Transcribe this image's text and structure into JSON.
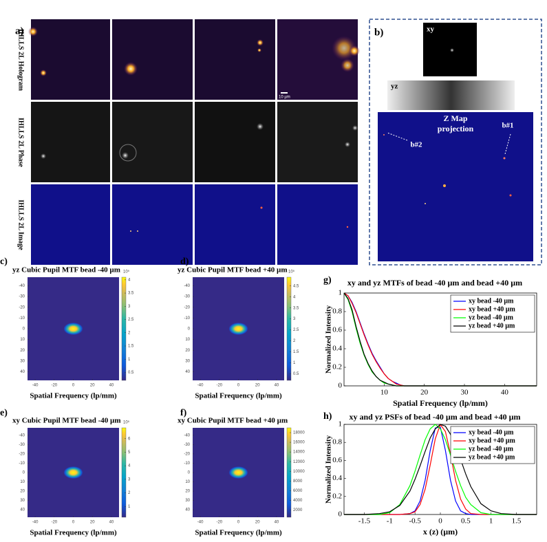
{
  "panel_a": {
    "label": "a)",
    "row_labels": [
      "IHLLS 2L Hologram",
      "IHLLS 2L Phase",
      "IHLLS 2L Image"
    ],
    "scale_bar": "10 µm"
  },
  "panel_b": {
    "label": "b)",
    "xy": "xy",
    "yz": "yz",
    "map_title": [
      "Z Map",
      "projection"
    ],
    "bead_labels": [
      "b#1",
      "b#2"
    ]
  },
  "chart_data": [
    {
      "type": "heatmap",
      "label": "c)",
      "title": "yz Cubic Pupil MTF bead -40 µm",
      "exponent": "10⁵",
      "xlabel": "Spatial Frequency (lp/mm)",
      "xlim": [
        -48,
        48
      ],
      "ylim": [
        48,
        -48
      ],
      "xticks": [
        -40,
        -20,
        0,
        20,
        40
      ],
      "yticks": [
        -40,
        -30,
        -20,
        -10,
        0,
        10,
        20,
        30,
        40
      ],
      "peak": {
        "x": 0,
        "y": 0,
        "value": 4.1
      },
      "clim": [
        0.2,
        4.1
      ],
      "cticks": [
        0.5,
        1,
        1.5,
        2,
        2.5,
        3,
        3.5,
        4
      ]
    },
    {
      "type": "heatmap",
      "label": "d)",
      "title": "yz Cubic Pupil MTF bead +40 µm",
      "exponent": "10⁵",
      "xlabel": "Spatial Frequency (lp/mm)",
      "xlim": [
        -48,
        48
      ],
      "ylim": [
        48,
        -48
      ],
      "xticks": [
        -40,
        -20,
        0,
        20,
        40
      ],
      "yticks": [
        -40,
        -30,
        -20,
        -10,
        0,
        10,
        20,
        30,
        40
      ],
      "peak": {
        "x": 0,
        "y": 0,
        "value": 4.9
      },
      "clim": [
        0.2,
        4.9
      ],
      "cticks": [
        0.5,
        1,
        1.5,
        2,
        2.5,
        3,
        3.5,
        4,
        4.5
      ]
    },
    {
      "type": "heatmap",
      "label": "e)",
      "title": "xy Cubic Pupil MTF bead -40 µm",
      "exponent": "10⁵",
      "xlabel": "Spatial Frequency (lp/mm)",
      "xlim": [
        -48,
        48
      ],
      "ylim": [
        48,
        -48
      ],
      "xticks": [
        -40,
        -20,
        0,
        20,
        40
      ],
      "yticks": [
        -40,
        -30,
        -20,
        -10,
        0,
        10,
        20,
        30,
        40
      ],
      "peak": {
        "x": 0,
        "y": 0,
        "value": 6.8
      },
      "clim": [
        0.2,
        6.8
      ],
      "cticks": [
        1,
        2,
        3,
        4,
        5,
        6
      ]
    },
    {
      "type": "heatmap",
      "label": "f)",
      "title": "xy Cubic Pupil MTF bead +40 µm",
      "xlabel": "Spatial Frequency (lp/mm)",
      "xlim": [
        -48,
        48
      ],
      "ylim": [
        48,
        -48
      ],
      "xticks": [
        -40,
        -20,
        0,
        20,
        40
      ],
      "yticks": [
        -40,
        -30,
        -20,
        -10,
        0,
        10,
        20,
        30,
        40
      ],
      "peak": {
        "x": 0,
        "y": 0,
        "value": 19000
      },
      "clim": [
        500,
        19000
      ],
      "cticks": [
        2000,
        4000,
        6000,
        8000,
        10000,
        12000,
        14000,
        16000,
        18000
      ]
    },
    {
      "type": "line",
      "label": "g)",
      "title": "xy and yz MTFs of bead -40 µm and bead +40 µm",
      "xlabel": "Spatial Frequency (lp/mm)",
      "ylabel": "Normalized Intensity",
      "xlim": [
        0,
        48
      ],
      "ylim": [
        0,
        1
      ],
      "xticks": [
        10,
        20,
        30,
        40
      ],
      "yticks": [
        0,
        0.2,
        0.4,
        0.6,
        0.8,
        1
      ],
      "legend": "top-right",
      "x": [
        0,
        1,
        2,
        3,
        4,
        5,
        6,
        7,
        8,
        9,
        10,
        11,
        12,
        13,
        14,
        15,
        16,
        20,
        30,
        40,
        48
      ],
      "series": [
        {
          "name": "xy bead -40 µm",
          "color": "#0000ff",
          "values": [
            1,
            0.97,
            0.9,
            0.8,
            0.68,
            0.56,
            0.45,
            0.35,
            0.27,
            0.2,
            0.13,
            0.08,
            0.05,
            0.03,
            0.01,
            0,
            0,
            0,
            0,
            0,
            0
          ]
        },
        {
          "name": "xy bead +40 µm",
          "color": "#ff0000",
          "values": [
            1,
            0.97,
            0.89,
            0.79,
            0.67,
            0.55,
            0.44,
            0.34,
            0.26,
            0.19,
            0.13,
            0.08,
            0.05,
            0.02,
            0.01,
            0,
            0,
            0,
            0,
            0,
            0
          ]
        },
        {
          "name": "yz bead -40 µm",
          "color": "#00ff00",
          "values": [
            1,
            0.93,
            0.8,
            0.62,
            0.46,
            0.33,
            0.23,
            0.15,
            0.1,
            0.06,
            0.03,
            0.02,
            0.01,
            0,
            0,
            0,
            0,
            0,
            0,
            0,
            0
          ]
        },
        {
          "name": "yz bead +40 µm",
          "color": "#000000",
          "values": [
            1,
            0.94,
            0.82,
            0.64,
            0.48,
            0.34,
            0.24,
            0.16,
            0.1,
            0.06,
            0.04,
            0.02,
            0.01,
            0,
            0,
            0,
            0,
            0,
            0,
            0,
            0
          ]
        }
      ]
    },
    {
      "type": "line",
      "label": "h)",
      "title": "xy and yz PSFs of bead -40 µm and bead +40 µm",
      "xlabel": "x (z) (µm)",
      "ylabel": "Normalized Intensity",
      "xlim": [
        -1.9,
        1.9
      ],
      "ylim": [
        0,
        1
      ],
      "xticks": [
        -1.5,
        -1,
        -0.5,
        0,
        0.5,
        1,
        1.5
      ],
      "yticks": [
        0,
        0.2,
        0.4,
        0.6,
        0.8,
        1
      ],
      "legend": "top-right",
      "x": [
        -1.9,
        -1.5,
        -1.2,
        -1,
        -0.8,
        -0.6,
        -0.5,
        -0.4,
        -0.3,
        -0.2,
        -0.1,
        0,
        0.1,
        0.2,
        0.3,
        0.4,
        0.5,
        0.6,
        0.8,
        1,
        1.2,
        1.5,
        1.9
      ],
      "series": [
        {
          "name": "xy bead -40 µm",
          "color": "#0000ff",
          "values": [
            0,
            0,
            0,
            0,
            0,
            0.01,
            0.04,
            0.15,
            0.38,
            0.71,
            0.96,
            0.97,
            0.71,
            0.38,
            0.15,
            0.04,
            0.01,
            0,
            0,
            0,
            0,
            0,
            0
          ]
        },
        {
          "name": "xy bead +40 µm",
          "color": "#ff0000",
          "values": [
            0,
            0,
            0,
            0,
            0,
            0.01,
            0.03,
            0.11,
            0.28,
            0.55,
            0.84,
            1,
            0.92,
            0.67,
            0.38,
            0.17,
            0.06,
            0.01,
            0,
            0,
            0,
            0,
            0
          ]
        },
        {
          "name": "yz bead -40 µm",
          "color": "#00ff00",
          "values": [
            0,
            0,
            0,
            0.02,
            0.11,
            0.32,
            0.48,
            0.66,
            0.83,
            0.95,
            1,
            0.95,
            0.83,
            0.66,
            0.48,
            0.32,
            0.19,
            0.11,
            0.02,
            0,
            0,
            0,
            0
          ]
        },
        {
          "name": "yz bead +40 µm",
          "color": "#000000",
          "values": [
            0,
            0,
            0.01,
            0.03,
            0.1,
            0.26,
            0.39,
            0.54,
            0.7,
            0.85,
            0.95,
            1,
            0.98,
            0.89,
            0.76,
            0.61,
            0.45,
            0.31,
            0.12,
            0.04,
            0.01,
            0,
            0
          ]
        }
      ]
    }
  ]
}
